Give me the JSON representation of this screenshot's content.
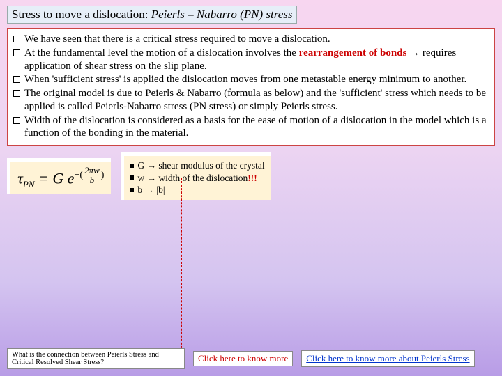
{
  "title": {
    "prefix": "Stress to move a dislocation: ",
    "italic": "Peierls – Nabarro (PN) stress"
  },
  "bullets": [
    {
      "text": "We have seen that there is a critical stress required to move a dislocation."
    },
    {
      "prefix": "At the fundamental level the motion of a dislocation involves the ",
      "highlight": "rearrangement of bonds",
      "suffix": " → requires application of shear stress on the slip plane."
    },
    {
      "text": "When 'sufficient stress' is applied the dislocation moves from one metastable energy minimum to another."
    },
    {
      "text": "The original model is due to Peierls & Nabarro (formula as below) and the 'sufficient' stress which needs to be applied is called Peierls-Nabarro stress (PN stress) or simply Peierls stress."
    },
    {
      "text": "Width of the dislocation is considered as a basis for the ease of motion of a dislocation in the model which is a function of the bonding in the material."
    }
  ],
  "formula": {
    "lhs": "τ",
    "sub": "PN",
    "eq": " = G e",
    "exp_num": "2πw",
    "exp_den": "b"
  },
  "defs": [
    {
      "text": "G → shear modulus of the crystal"
    },
    {
      "text": "w → width of the dislocation ",
      "exclaim": "!!!"
    },
    {
      "text": "b → |b|"
    }
  ],
  "footer": {
    "question": "What is the connection between Peierls Stress and Critical Resolved Shear Stress?",
    "link1": "Click here to know more",
    "link2": "Click here to know more about Peierls Stress"
  },
  "colors": {
    "bg_top": "#f7d6f0",
    "bg_bottom": "#b89ce6",
    "box_border": "#cc4444",
    "highlight": "#cc0000",
    "formula_bg": "#fff3d6",
    "link_blue": "#0033cc"
  }
}
